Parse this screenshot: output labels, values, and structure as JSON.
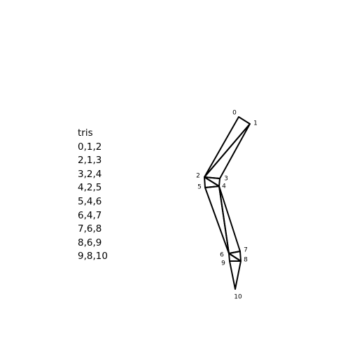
{
  "heading": "tris",
  "triangles": [
    "0,1,2",
    "2,1,3",
    "3,2,4",
    "4,2,5",
    "5,4,6",
    "6,4,7",
    "7,6,8",
    "8,6,9",
    "9,8,10"
  ],
  "vertex_labels": [
    "0",
    "1",
    "2",
    "3",
    "4",
    "5",
    "6",
    "7",
    "8",
    "9",
    "10"
  ],
  "line_color": "#000000"
}
